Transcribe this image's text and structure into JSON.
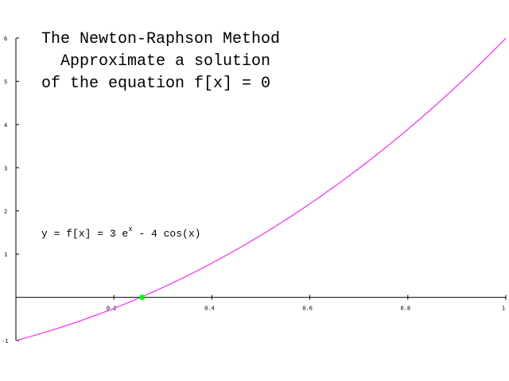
{
  "chart_data": {
    "type": "line",
    "title_lines": [
      "The Newton-Raphson Method",
      "Approximate a solution",
      "of the equation f[x] = 0"
    ],
    "annotation": {
      "prefix": "y = f[x] = 3 e",
      "superscript": "x",
      "suffix": " - 4 cos(x)"
    },
    "function": "3*exp(x) - 4*cos(x)",
    "xlim": [
      0,
      1
    ],
    "ylim": [
      -1,
      6
    ],
    "x_ticks": [
      0.2,
      0.4,
      0.6,
      0.8,
      1
    ],
    "x_tick_labels": [
      "0.2",
      "0.4",
      "0.6",
      "0.8",
      "1"
    ],
    "y_ticks": [
      -1,
      1,
      2,
      3,
      4,
      5,
      6
    ],
    "y_tick_labels": [
      "-1",
      "1",
      "2",
      "3",
      "4",
      "5",
      "6"
    ],
    "series": [
      {
        "color": "#ff00ff",
        "x_range": [
          0,
          1
        ]
      }
    ],
    "root_point": {
      "x": 0.2575,
      "y": 0,
      "color": "#00ff00"
    },
    "grid": false
  }
}
